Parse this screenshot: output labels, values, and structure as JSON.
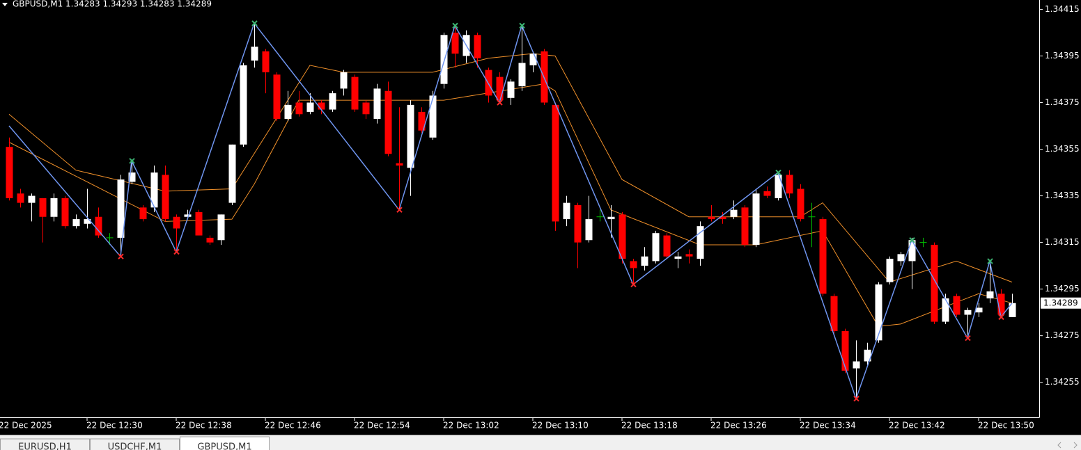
{
  "chart_data": {
    "type": "candlestick",
    "title": "GBPUSD,M1  1.34283 1.34293 1.34283 1.34289",
    "open": [
      1.34356,
      1.34336,
      1.34332,
      1.34334,
      1.34326,
      1.34334,
      1.34322,
      1.34323,
      1.34326,
      1.34317,
      1.34317,
      1.34341,
      1.3433,
      1.3433,
      1.34344,
      1.34326,
      1.34326,
      1.34328,
      1.34317,
      1.34316,
      1.34332,
      1.34357,
      1.34393,
      1.34397,
      1.34387,
      1.34368,
      1.34375,
      1.34371,
      1.34375,
      1.34372,
      1.34381,
      1.34386,
      1.34375,
      1.34368,
      1.3438,
      1.34349,
      1.34347,
      1.34371,
      1.3436,
      1.34383,
      1.34405,
      1.34395,
      1.34404,
      1.34389,
      1.34386,
      1.34377,
      1.34382,
      1.34391,
      1.34397,
      1.34374,
      1.34325,
      1.34331,
      1.34316,
      1.34326,
      1.34325,
      1.34327,
      1.34307,
      1.34305,
      1.34307,
      1.34318,
      1.34308,
      1.3431,
      1.34308,
      1.34326,
      1.34326,
      1.34326,
      1.3433,
      1.34314,
      1.34337,
      1.34334,
      1.34344,
      1.34338,
      1.34326,
      1.34325,
      1.34292,
      1.34277,
      1.34261,
      1.34264,
      1.34273,
      1.34298,
      1.34307,
      1.34307,
      1.34315,
      1.34314,
      1.34281,
      1.34292,
      1.34284,
      1.34285,
      1.34291,
      1.34293,
      1.34283
    ],
    "high": [
      1.3436,
      1.34338,
      1.34336,
      1.34334,
      1.34336,
      1.34335,
      1.34327,
      1.34338,
      1.3433,
      1.34319,
      1.34344,
      1.3435,
      1.34331,
      1.34348,
      1.34348,
      1.34327,
      1.34329,
      1.34329,
      1.34318,
      1.34327,
      1.34357,
      1.34392,
      1.34409,
      1.34398,
      1.34388,
      1.3438,
      1.3438,
      1.34379,
      1.34376,
      1.3438,
      1.34389,
      1.34387,
      1.34376,
      1.34383,
      1.34384,
      1.34373,
      1.34376,
      1.34373,
      1.3438,
      1.34405,
      1.34408,
      1.34406,
      1.34405,
      1.3439,
      1.34388,
      1.34385,
      1.34408,
      1.34397,
      1.34398,
      1.34375,
      1.34335,
      1.34332,
      1.34335,
      1.34329,
      1.34331,
      1.34328,
      1.34308,
      1.34313,
      1.3432,
      1.34319,
      1.34311,
      1.34312,
      1.34324,
      1.34331,
      1.34328,
      1.34333,
      1.34331,
      1.34338,
      1.34339,
      1.34345,
      1.34346,
      1.3434,
      1.34332,
      1.34326,
      1.34293,
      1.34278,
      1.34273,
      1.34272,
      1.34298,
      1.34309,
      1.34311,
      1.34317,
      1.34317,
      1.34315,
      1.34293,
      1.34293,
      1.34287,
      1.34289,
      1.34307,
      1.34295,
      1.34293
    ],
    "low": [
      1.34333,
      1.3433,
      1.34324,
      1.34315,
      1.34324,
      1.34321,
      1.34321,
      1.34321,
      1.34317,
      1.34314,
      1.34309,
      1.3434,
      1.34324,
      1.34328,
      1.34324,
      1.34311,
      1.34325,
      1.34318,
      1.34314,
      1.34314,
      1.34331,
      1.34356,
      1.3439,
      1.34379,
      1.34367,
      1.34367,
      1.34369,
      1.3437,
      1.3437,
      1.34371,
      1.34378,
      1.34371,
      1.34368,
      1.34366,
      1.34352,
      1.34329,
      1.34335,
      1.34362,
      1.34359,
      1.34381,
      1.3439,
      1.34392,
      1.3439,
      1.34375,
      1.34375,
      1.34374,
      1.3438,
      1.34388,
      1.34374,
      1.3432,
      1.34322,
      1.34304,
      1.34315,
      1.34324,
      1.34317,
      1.34306,
      1.34297,
      1.34303,
      1.34306,
      1.34308,
      1.34304,
      1.34306,
      1.34305,
      1.34324,
      1.34323,
      1.34325,
      1.34313,
      1.34313,
      1.34334,
      1.34333,
      1.34334,
      1.34324,
      1.34313,
      1.34292,
      1.34276,
      1.34259,
      1.34248,
      1.34262,
      1.34272,
      1.34297,
      1.34305,
      1.34295,
      1.34313,
      1.3428,
      1.3428,
      1.34283,
      1.34274,
      1.34283,
      1.34289,
      1.34283,
      1.34283
    ],
    "close": [
      1.34334,
      1.34332,
      1.34335,
      1.34326,
      1.34334,
      1.34322,
      1.34325,
      1.34325,
      1.34318,
      1.34317,
      1.34342,
      1.34345,
      1.34325,
      1.34345,
      1.34325,
      1.34321,
      1.34327,
      1.34318,
      1.34315,
      1.34327,
      1.34357,
      1.34391,
      1.34399,
      1.34388,
      1.34368,
      1.34374,
      1.3437,
      1.34375,
      1.34372,
      1.34379,
      1.34388,
      1.34372,
      1.3437,
      1.34381,
      1.34353,
      1.34348,
      1.34374,
      1.34363,
      1.34378,
      1.34404,
      1.34396,
      1.34404,
      1.34394,
      1.34378,
      1.34376,
      1.34384,
      1.34392,
      1.34396,
      1.34375,
      1.34324,
      1.34332,
      1.34315,
      1.34325,
      1.34326,
      1.34326,
      1.34308,
      1.34304,
      1.34309,
      1.34319,
      1.34309,
      1.34309,
      1.34309,
      1.34322,
      1.34325,
      1.34325,
      1.34329,
      1.34314,
      1.34336,
      1.34335,
      1.34344,
      1.34336,
      1.34325,
      1.34326,
      1.34293,
      1.34277,
      1.3426,
      1.34264,
      1.34269,
      1.34297,
      1.34308,
      1.3431,
      1.34316,
      1.34315,
      1.34281,
      1.34291,
      1.34284,
      1.34286,
      1.34287,
      1.34294,
      1.34284,
      1.34289
    ],
    "up_color": "#ffffff",
    "down_color": "#ff0000",
    "doji_color": "#00c000",
    "zigzag": {
      "color": "#6f95f0",
      "high_marker_color": "#3cb371",
      "low_marker_color": "#ff2a2a",
      "x": [
        0,
        10,
        11,
        15,
        22,
        35,
        40,
        44,
        46,
        56,
        69,
        76,
        81,
        86,
        88,
        89,
        90
      ],
      "values": [
        1.34365,
        1.34309,
        1.3435,
        1.34311,
        1.34409,
        1.34329,
        1.34408,
        1.34375,
        1.34408,
        1.34297,
        1.34345,
        1.34248,
        1.34316,
        1.34274,
        1.34307,
        1.34283,
        1.34289
      ]
    },
    "bands": [
      {
        "color": "#f0902a",
        "x": [
          0,
          6,
          14,
          20,
          27,
          30,
          38,
          43,
          47,
          49,
          55,
          61,
          71,
          73,
          79,
          85,
          90
        ],
        "values": [
          1.3437,
          1.34346,
          1.34337,
          1.34338,
          1.34391,
          1.34388,
          1.34388,
          1.34394,
          1.34396,
          1.34395,
          1.34342,
          1.34326,
          1.34326,
          1.34332,
          1.34298,
          1.34307,
          1.34298
        ]
      },
      {
        "color": "#f0902a",
        "x": [
          0,
          14,
          20,
          22,
          26,
          39,
          48,
          49,
          54,
          62,
          67,
          73,
          78,
          80,
          87,
          90
        ],
        "values": [
          1.34358,
          1.34324,
          1.34325,
          1.3434,
          1.34376,
          1.34376,
          1.34383,
          1.3438,
          1.34329,
          1.34314,
          1.34314,
          1.3432,
          1.34279,
          1.3428,
          1.34293,
          1.34289
        ]
      }
    ],
    "ylim": [
      1.3424,
      1.34419
    ],
    "yticks": [
      1.34255,
      1.34275,
      1.34295,
      1.34315,
      1.34335,
      1.34355,
      1.34375,
      1.34395,
      1.34415
    ],
    "xlim": [
      -0.8125,
      92.4375
    ],
    "xticks": [
      {
        "value": -1,
        "label": "22 Dec 2025"
      },
      {
        "value": 7,
        "label": "22 Dec 12:30"
      },
      {
        "value": 15,
        "label": "22 Dec 12:38"
      },
      {
        "value": 23,
        "label": "22 Dec 12:46"
      },
      {
        "value": 31,
        "label": "22 Dec 12:54"
      },
      {
        "value": 39,
        "label": "22 Dec 13:02"
      },
      {
        "value": 47,
        "label": "22 Dec 13:10"
      },
      {
        "value": 55,
        "label": "22 Dec 13:18"
      },
      {
        "value": 63,
        "label": "22 Dec 13:26"
      },
      {
        "value": 71,
        "label": "22 Dec 13:34"
      },
      {
        "value": 79,
        "label": "22 Dec 13:42"
      },
      {
        "value": 87,
        "label": "22 Dec 13:50"
      }
    ],
    "current_price": 1.34289
  },
  "tabs": [
    "EURUSD,H1",
    "USDCHF,M1",
    "GBPUSD,M1"
  ]
}
